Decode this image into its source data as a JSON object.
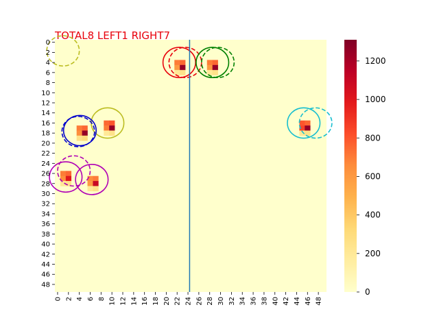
{
  "chart_data": {
    "type": "heatmap",
    "title": "TOTAL8  LEFT1 RIGHT7",
    "grid_size": [
      50,
      50
    ],
    "xlim": [
      0,
      50
    ],
    "ylim": [
      0,
      50
    ],
    "x_ticks": [
      0,
      2,
      4,
      6,
      8,
      10,
      12,
      14,
      16,
      18,
      20,
      22,
      24,
      26,
      28,
      30,
      32,
      34,
      36,
      38,
      40,
      42,
      44,
      46,
      48
    ],
    "y_ticks": [
      0,
      2,
      4,
      6,
      8,
      10,
      12,
      14,
      16,
      18,
      20,
      22,
      24,
      26,
      28,
      30,
      32,
      34,
      36,
      38,
      40,
      42,
      44,
      46,
      48
    ],
    "colorbar": {
      "min": 0,
      "max": 1310,
      "ticks": [
        0,
        200,
        400,
        600,
        800,
        1000,
        1200
      ]
    },
    "divider_x": 24.8,
    "divider_color": "#1f77b4",
    "cells": [
      {
        "x": 22,
        "y": 4,
        "v": 700
      },
      {
        "x": 23,
        "y": 4,
        "v": 750
      },
      {
        "x": 22,
        "y": 5,
        "v": 600
      },
      {
        "x": 23,
        "y": 5,
        "v": 1250
      },
      {
        "x": 22,
        "y": 6,
        "v": 200
      },
      {
        "x": 23,
        "y": 6,
        "v": 250
      },
      {
        "x": 28,
        "y": 4,
        "v": 700
      },
      {
        "x": 29,
        "y": 4,
        "v": 750
      },
      {
        "x": 28,
        "y": 5,
        "v": 600
      },
      {
        "x": 29,
        "y": 5,
        "v": 1250
      },
      {
        "x": 28,
        "y": 6,
        "v": 200
      },
      {
        "x": 29,
        "y": 6,
        "v": 250
      },
      {
        "x": 9,
        "y": 16,
        "v": 750
      },
      {
        "x": 10,
        "y": 16,
        "v": 800
      },
      {
        "x": 9,
        "y": 17,
        "v": 700
      },
      {
        "x": 10,
        "y": 17,
        "v": 1250
      },
      {
        "x": 9,
        "y": 18,
        "v": 200
      },
      {
        "x": 10,
        "y": 18,
        "v": 250
      },
      {
        "x": 4,
        "y": 17,
        "v": 700
      },
      {
        "x": 5,
        "y": 17,
        "v": 750
      },
      {
        "x": 4,
        "y": 18,
        "v": 650
      },
      {
        "x": 5,
        "y": 18,
        "v": 1250
      },
      {
        "x": 4,
        "y": 19,
        "v": 250
      },
      {
        "x": 5,
        "y": 19,
        "v": 300
      },
      {
        "x": 45,
        "y": 16,
        "v": 800
      },
      {
        "x": 46,
        "y": 16,
        "v": 750
      },
      {
        "x": 45,
        "y": 17,
        "v": 850
      },
      {
        "x": 46,
        "y": 17,
        "v": 1250
      },
      {
        "x": 45,
        "y": 18,
        "v": 200
      },
      {
        "x": 46,
        "y": 18,
        "v": 250
      },
      {
        "x": 1,
        "y": 26,
        "v": 700
      },
      {
        "x": 2,
        "y": 26,
        "v": 750
      },
      {
        "x": 1,
        "y": 27,
        "v": 650
      },
      {
        "x": 2,
        "y": 27,
        "v": 1000
      },
      {
        "x": 1,
        "y": 28,
        "v": 200
      },
      {
        "x": 2,
        "y": 28,
        "v": 250
      },
      {
        "x": 6,
        "y": 27,
        "v": 650
      },
      {
        "x": 7,
        "y": 27,
        "v": 700
      },
      {
        "x": 6,
        "y": 28,
        "v": 600
      },
      {
        "x": 7,
        "y": 28,
        "v": 1100
      },
      {
        "x": 6,
        "y": 29,
        "v": 200
      },
      {
        "x": 7,
        "y": 29,
        "v": 250
      }
    ],
    "circles": [
      {
        "cx": 1.5,
        "cy": 2.2,
        "r": 3.0,
        "color": "#bcbd22",
        "style": "dashed"
      },
      {
        "cx": 22.9,
        "cy": 4.5,
        "r": 3.0,
        "color": "#e8000b",
        "style": "solid"
      },
      {
        "cx": 24.0,
        "cy": 4.5,
        "r": 3.0,
        "color": "#e8000b",
        "style": "dashed"
      },
      {
        "cx": 29.0,
        "cy": 4.5,
        "r": 3.0,
        "color": "#008000",
        "style": "solid"
      },
      {
        "cx": 30.0,
        "cy": 4.5,
        "r": 3.0,
        "color": "#008000",
        "style": "dashed"
      },
      {
        "cx": 9.7,
        "cy": 16.5,
        "r": 3.0,
        "color": "#bcbd22",
        "style": "solid"
      },
      {
        "cx": 4.6,
        "cy": 18.0,
        "r": 3.0,
        "color": "#0000cc",
        "style": "solid"
      },
      {
        "cx": 4.3,
        "cy": 18.2,
        "r": 3.0,
        "color": "#0000cc",
        "style": "dashed"
      },
      {
        "cx": 45.8,
        "cy": 16.5,
        "r": 3.0,
        "color": "#17becf",
        "style": "solid"
      },
      {
        "cx": 48.0,
        "cy": 16.5,
        "r": 3.0,
        "color": "#17becf",
        "style": "dashed"
      },
      {
        "cx": 2.0,
        "cy": 27.2,
        "r": 3.0,
        "color": "#b000b5",
        "style": "solid"
      },
      {
        "cx": 3.5,
        "cy": 26.0,
        "r": 3.0,
        "color": "#b000b5",
        "style": "dashed"
      },
      {
        "cx": 6.8,
        "cy": 27.7,
        "r": 3.0,
        "color": "#b000b5",
        "style": "solid"
      }
    ]
  }
}
